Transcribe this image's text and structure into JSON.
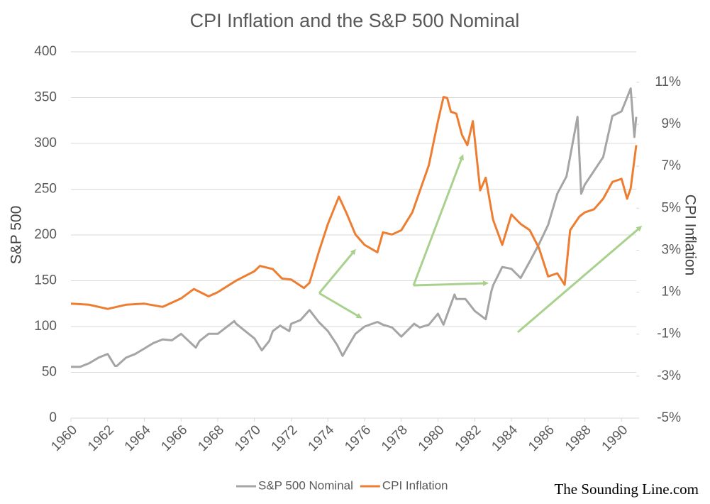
{
  "chart_data": {
    "type": "line",
    "title": "CPI Inflation and the S&P 500 Nominal",
    "y_label": "S&P 500",
    "y2_label": "CPI Inflation",
    "source": "The Sounding Line.com",
    "xlim": [
      1960,
      1990.8
    ],
    "xticks": [
      1960,
      1962,
      1964,
      1966,
      1968,
      1970,
      1972,
      1974,
      1976,
      1978,
      1980,
      1982,
      1984,
      1986,
      1988,
      1990
    ],
    "ylim": [
      0,
      400
    ],
    "yticks": [
      0,
      50,
      100,
      150,
      200,
      250,
      300,
      350,
      400
    ],
    "y2lim": [
      -5,
      12.45
    ],
    "y2ticks": [
      {
        "value": -5,
        "label": "-5%"
      },
      {
        "value": -3,
        "label": "-3%"
      },
      {
        "value": -1,
        "label": "-1%"
      },
      {
        "value": 1,
        "label": "1%"
      },
      {
        "value": 3,
        "label": "3%"
      },
      {
        "value": 5,
        "label": "5%"
      },
      {
        "value": 7,
        "label": "7%"
      },
      {
        "value": 9,
        "label": "9%"
      },
      {
        "value": 11,
        "label": "11%"
      }
    ],
    "grid": true,
    "legend": "bottom",
    "series": [
      {
        "name": "S&P 500 Nominal",
        "color": "#a5a5a5",
        "axis": "y",
        "x": [
          1960,
          1960.5,
          1961,
          1961.5,
          1962,
          1962.4,
          1962.5,
          1963,
          1963.5,
          1964,
          1964.5,
          1965,
          1965.5,
          1966,
          1966.8,
          1967,
          1967.5,
          1968,
          1968.9,
          1969,
          1969.5,
          1970,
          1970.4,
          1970.8,
          1971,
          1971.4,
          1971.9,
          1972,
          1972.5,
          1973,
          1973.5,
          1974,
          1974.5,
          1974.8,
          1975,
          1975.5,
          1976,
          1976.7,
          1977,
          1977.5,
          1978,
          1978.7,
          1979,
          1979.5,
          1980,
          1980.3,
          1980.9,
          1981,
          1981.5,
          1982,
          1982.6,
          1982.9,
          1983,
          1983.5,
          1984,
          1984.5,
          1985,
          1985.5,
          1986,
          1986.5,
          1987,
          1987.6,
          1987.8,
          1988,
          1988.5,
          1989,
          1989.5,
          1990,
          1990.5,
          1990.7,
          1990.8
        ],
        "values": [
          56,
          56,
          60,
          66,
          70,
          57,
          57,
          66,
          70,
          76,
          82,
          86,
          85,
          92,
          77,
          84,
          92,
          92,
          106,
          103,
          95,
          87,
          74,
          84,
          95,
          101,
          95,
          103,
          107,
          118,
          105,
          95,
          80,
          68,
          75,
          92,
          100,
          105,
          102,
          99,
          89,
          103,
          99,
          102,
          114,
          102,
          135,
          130,
          130,
          117,
          108,
          138,
          145,
          165,
          163,
          153,
          171,
          190,
          211,
          245,
          264,
          329,
          245,
          255,
          270,
          285,
          330,
          335,
          360,
          307,
          329
        ]
      },
      {
        "name": "CPI Inflation",
        "color": "#ed7d31",
        "axis": "y2",
        "x": [
          1960,
          1961,
          1962,
          1963,
          1964,
          1965,
          1966,
          1966.7,
          1967.5,
          1968,
          1969,
          1970,
          1970.3,
          1971,
          1971.5,
          1972,
          1972.7,
          1973,
          1973.5,
          1974,
          1974.6,
          1975,
          1975.5,
          1976,
          1976.7,
          1977,
          1977.5,
          1978,
          1978.6,
          1979,
          1979.5,
          1980,
          1980.3,
          1980.5,
          1980.7,
          1981,
          1981.3,
          1981.6,
          1981.9,
          1982.3,
          1982.6,
          1983,
          1983.5,
          1984,
          1984.5,
          1985,
          1985.5,
          1986,
          1986.5,
          1986.9,
          1987.2,
          1987.7,
          1988,
          1988.5,
          1989,
          1989.5,
          1990,
          1990.3,
          1990.5,
          1990.8
        ],
        "values": [
          0.45,
          0.4,
          0.2,
          0.4,
          0.45,
          0.3,
          0.7,
          1.15,
          0.8,
          1.0,
          1.55,
          2.0,
          2.25,
          2.1,
          1.65,
          1.6,
          1.2,
          1.45,
          2.9,
          4.25,
          5.55,
          4.8,
          3.75,
          3.25,
          2.9,
          3.85,
          3.75,
          3.95,
          4.8,
          5.8,
          7.05,
          9.15,
          10.3,
          10.25,
          9.6,
          9.5,
          8.5,
          8.0,
          9.15,
          5.85,
          6.45,
          4.45,
          3.25,
          4.7,
          4.25,
          3.95,
          3.1,
          1.75,
          1.9,
          1.35,
          3.95,
          4.6,
          4.8,
          4.95,
          5.45,
          6.25,
          6.4,
          5.45,
          5.95,
          8.0
        ]
      }
    ]
  }
}
